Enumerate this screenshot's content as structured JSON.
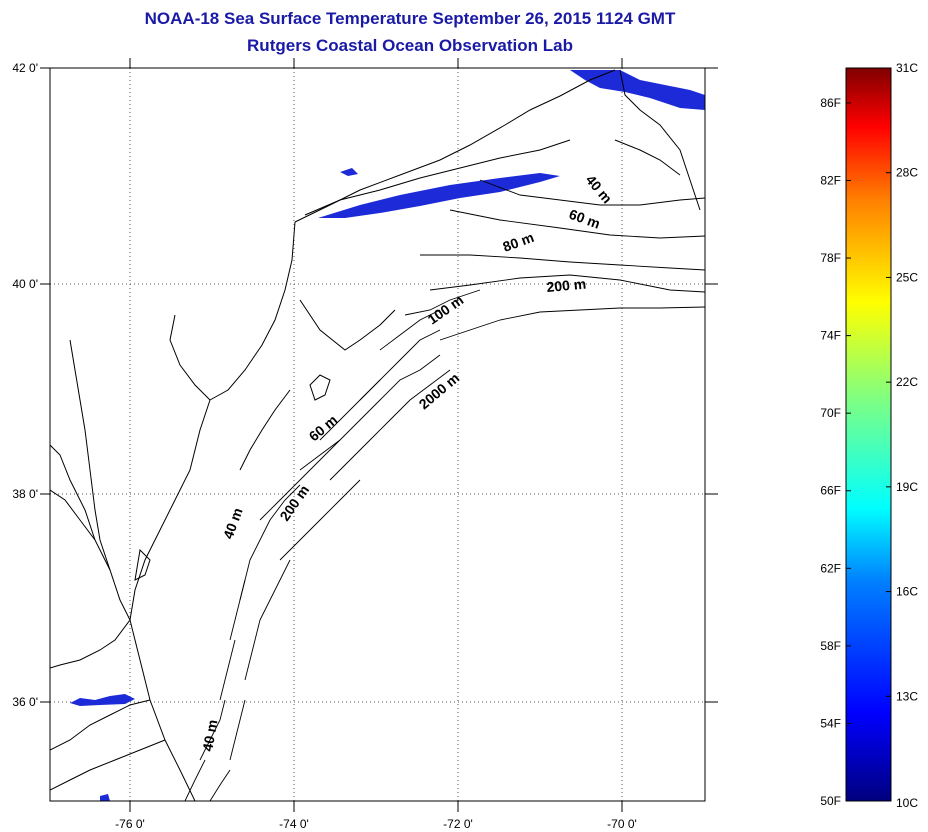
{
  "title": "NOAA-18 Sea Surface Temperature September 26, 2015 1124 GMT",
  "subtitle": "Rutgers Coastal Ocean Observation Lab",
  "colors": {
    "title": "#1a1aa6",
    "frame": "#000000",
    "grid": "#555555",
    "land_line": "#000000",
    "cold_patch": "#1d2ad8"
  },
  "map": {
    "lat_labels": [
      "42 0'",
      "40 0'",
      "38 0'",
      "36 0'"
    ],
    "lon_labels": [
      "-76 0'",
      "-74 0'",
      "-72 0'",
      "-70 0'"
    ],
    "lat_range": [
      35.0,
      42.0
    ],
    "lon_range": [
      -77.0,
      -69.0
    ],
    "isobath_labels": [
      "40 m",
      "60 m",
      "80 m",
      "200 m",
      "100 m",
      "2000 m",
      "60 m",
      "200 m",
      "40 m",
      "40 m"
    ]
  },
  "colorbar": {
    "fahrenheit_labels": [
      "86F",
      "82F",
      "78F",
      "74F",
      "70F",
      "66F",
      "62F",
      "58F",
      "54F",
      "50F"
    ],
    "celsius_labels": [
      "31C",
      "28C",
      "25C",
      "22C",
      "19C",
      "16C",
      "13C",
      "10C"
    ],
    "range_c": [
      10,
      31
    ],
    "range_f": [
      50,
      88
    ]
  }
}
